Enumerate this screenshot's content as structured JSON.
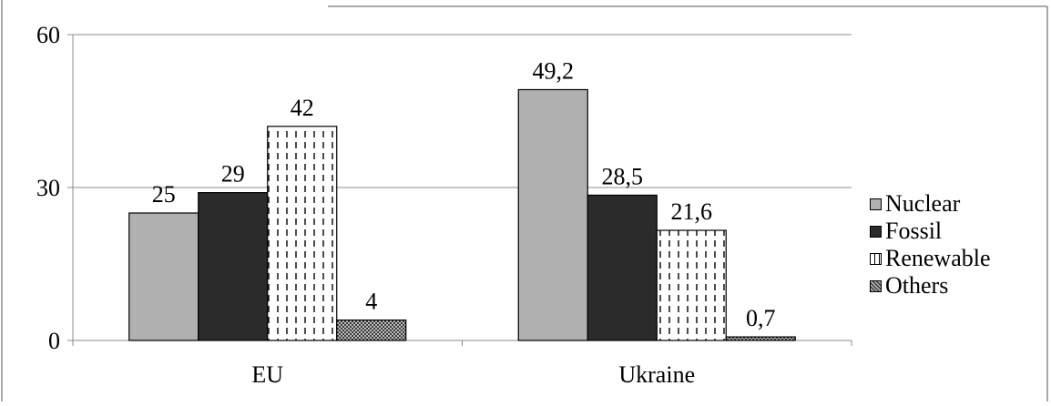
{
  "chart_data": {
    "type": "bar",
    "title": "",
    "xlabel": "",
    "ylabel": "",
    "categories": [
      "EU",
      "Ukraine"
    ],
    "ylim": [
      0,
      60
    ],
    "yticks": [
      "0",
      "30",
      "60"
    ],
    "grid": true,
    "legend": "right",
    "series": [
      {
        "name": "Nuclear",
        "values": [
          25,
          49.2
        ],
        "labels": [
          "25",
          "49,2"
        ],
        "color": "#b0b0b0",
        "pattern": "solid-light"
      },
      {
        "name": "Fossil",
        "values": [
          29,
          28.5
        ],
        "labels": [
          "29",
          "28,5"
        ],
        "color": "#2b2b2b",
        "pattern": "solid-dark"
      },
      {
        "name": "Renewable",
        "values": [
          42,
          21.6
        ],
        "labels": [
          "42",
          "21,6"
        ],
        "color": "#ffffff",
        "pattern": "vertical-dashes"
      },
      {
        "name": "Others",
        "values": [
          4,
          0.7
        ],
        "labels": [
          "4",
          "0,7"
        ],
        "color": "#555555",
        "pattern": "checker"
      }
    ]
  }
}
